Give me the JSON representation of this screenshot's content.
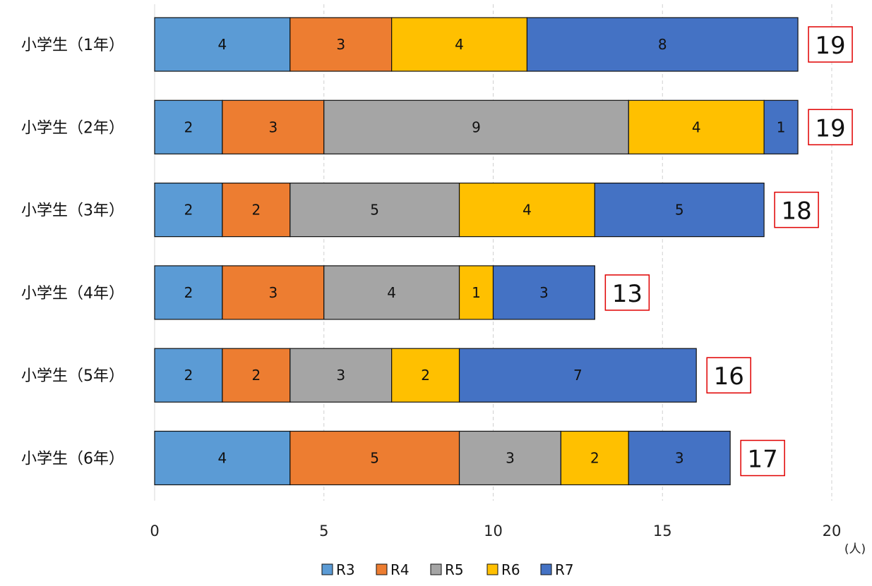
{
  "chart_data": {
    "type": "bar",
    "orientation": "horizontal",
    "stacked": true,
    "categories": [
      "小学生（1年）",
      "小学生（2年）",
      "小学生（3年）",
      "小学生（4年）",
      "小学生（5年）",
      "小学生（6年）"
    ],
    "series": [
      {
        "name": "R3",
        "color": "#5B9BD5",
        "values": [
          4,
          2,
          2,
          2,
          2,
          4
        ]
      },
      {
        "name": "R4",
        "color": "#ED7D31",
        "values": [
          3,
          3,
          2,
          3,
          2,
          5
        ]
      },
      {
        "name": "R5",
        "color": "#A5A5A5",
        "values": [
          0,
          9,
          5,
          4,
          3,
          3
        ]
      },
      {
        "name": "R6",
        "color": "#FFC000",
        "values": [
          4,
          4,
          4,
          1,
          2,
          2
        ]
      },
      {
        "name": "R7",
        "color": "#4472C4",
        "values": [
          8,
          1,
          5,
          3,
          7,
          3
        ]
      }
    ],
    "totals": [
      "19",
      "19",
      "18",
      "13",
      "16",
      "17"
    ],
    "xlim": [
      0,
      20
    ],
    "xticks": [
      "0",
      "5",
      "10",
      "15",
      "20"
    ],
    "unit_label": "(人)",
    "grid": true,
    "grid_style": "dashed vertical",
    "legend_position": "bottom",
    "total_box_color": "#E00000"
  }
}
